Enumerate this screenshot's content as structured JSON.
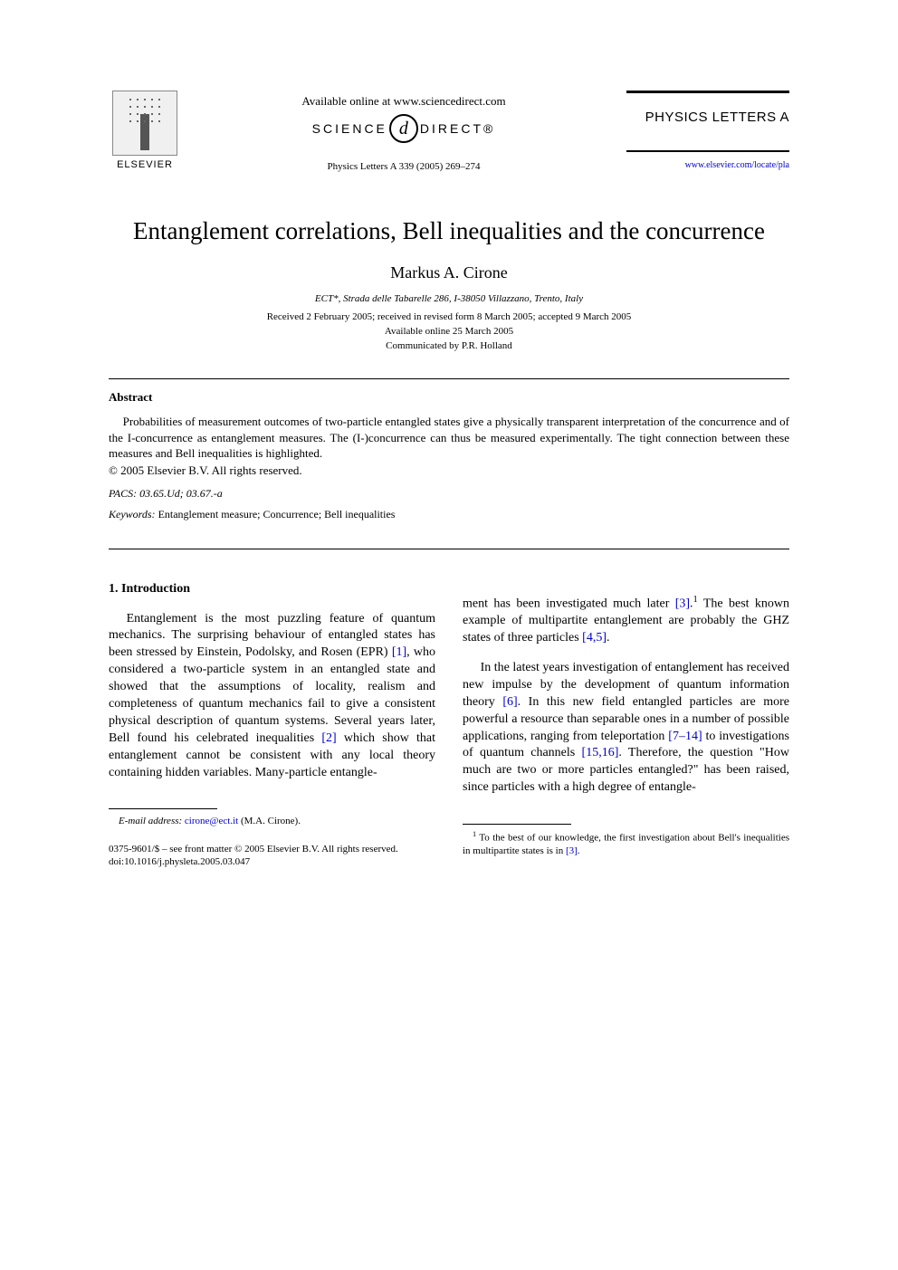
{
  "header": {
    "available_online": "Available online at www.sciencedirect.com",
    "sd_left": "SCIENCE",
    "sd_at": "d",
    "sd_right": "DIRECT®",
    "journal_ref": "Physics Letters A 339 (2005) 269–274",
    "elsevier_label": "ELSEVIER",
    "journal_name": "PHYSICS LETTERS A",
    "journal_url": "www.elsevier.com/locate/pla"
  },
  "title": "Entanglement correlations, Bell inequalities and the concurrence",
  "author": "Markus A. Cirone",
  "affiliation": "ECT*, Strada delle Tabarelle 286, I-38050 Villazzano, Trento, Italy",
  "dates": {
    "received": "Received 2 February 2005; received in revised form 8 March 2005; accepted 9 March 2005",
    "online": "Available online 25 March 2005",
    "communicated": "Communicated by P.R. Holland"
  },
  "abstract": {
    "heading": "Abstract",
    "text": "Probabilities of measurement outcomes of two-particle entangled states give a physically transparent interpretation of the concurrence and of the I-concurrence as entanglement measures. The (I-)concurrence can thus be measured experimentally. The tight connection between these measures and Bell inequalities is highlighted.",
    "copyright": "© 2005 Elsevier B.V. All rights reserved."
  },
  "pacs": {
    "label": "PACS:",
    "value": " 03.65.Ud; 03.67.-a"
  },
  "keywords": {
    "label": "Keywords:",
    "value": " Entanglement measure; Concurrence; Bell inequalities"
  },
  "section1": {
    "heading": "1.  Introduction",
    "col1_p1_a": "Entanglement is the most puzzling feature of quantum mechanics. The surprising behaviour of entangled states has been stressed by Einstein, Podolsky, and Rosen (EPR) ",
    "ref1": "[1]",
    "col1_p1_b": ", who considered a two-particle system in an entangled state and showed that the assumptions of locality, realism and completeness of quantum mechanics fail to give a consistent physical description of quantum systems. Several years later, Bell found his celebrated inequalities ",
    "ref2": "[2]",
    "col1_p1_c": " which show that entanglement cannot be consistent with any local theory containing hidden variables. Many-particle entangle-",
    "col2_p1_a": "ment has been investigated much later ",
    "ref3": "[3]",
    "col2_p1_b": " The best known example of multipartite entanglement are probably the GHZ states of three particles ",
    "ref45": "[4,5]",
    "col2_p1_c": ".",
    "col2_p2_a": "In the latest years investigation of entanglement has received new impulse by the development of quantum information theory ",
    "ref6": "[6]",
    "col2_p2_b": ". In this new field entangled particles are more powerful a resource than separable ones in a number of possible applications, ranging from teleportation ",
    "ref714": "[7–14]",
    "col2_p2_c": " to investigations of quantum channels ",
    "ref1516": "[15,16]",
    "col2_p2_d": ". Therefore, the question \"How much are two or more particles entangled?\" has been raised, since particles with a high degree of entangle-"
  },
  "footnotes": {
    "email_label": "E-mail address:",
    "email": "cirone@ect.it",
    "email_author": " (M.A. Cirone).",
    "fn1_a": "To the best of our knowledge, the first investigation about Bell's inequalities in multipartite states is in ",
    "fn1_ref": "[3]",
    "fn1_b": "."
  },
  "bottom": {
    "line1": "0375-9601/$ – see front matter © 2005 Elsevier B.V. All rights reserved.",
    "line2": "doi:10.1016/j.physleta.2005.03.047"
  }
}
